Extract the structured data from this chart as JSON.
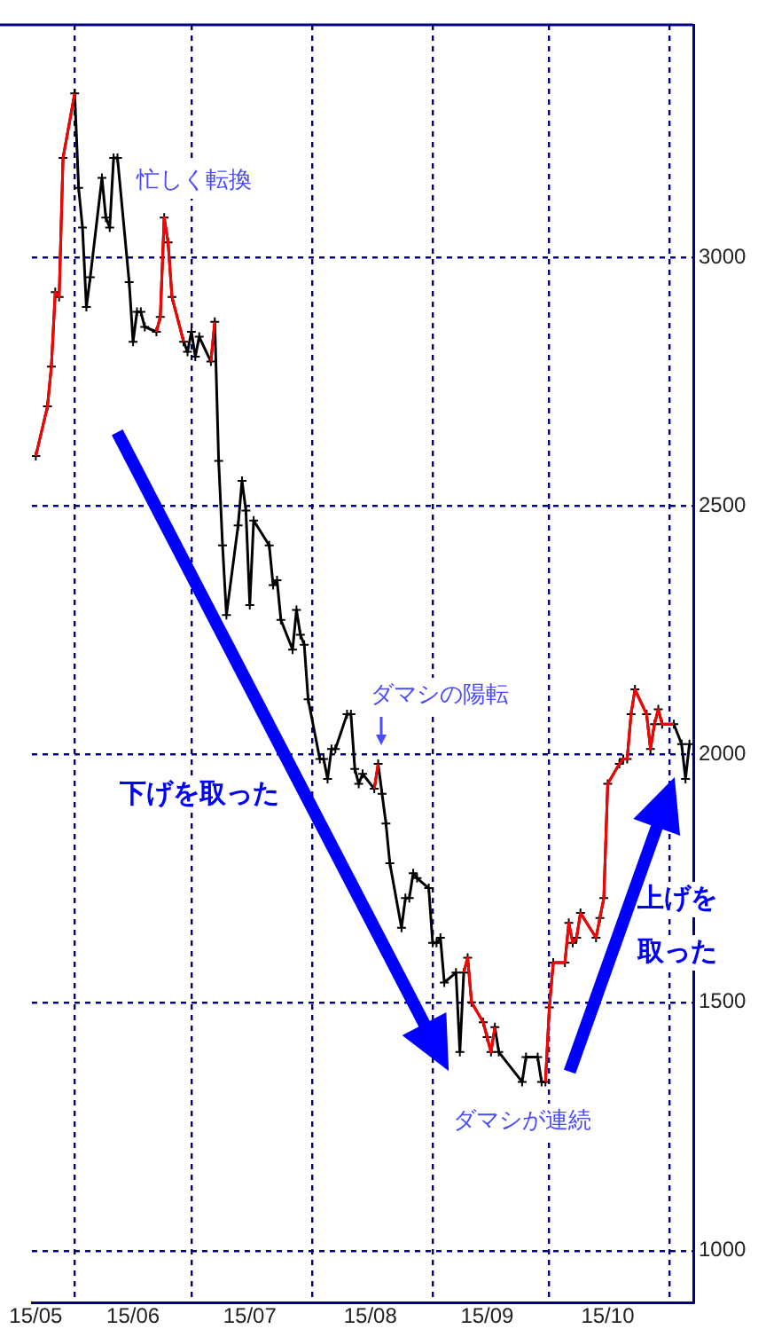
{
  "chart_data": {
    "type": "line",
    "x": [
      "--05-22",
      "--05-25",
      "--05-26",
      "--05-27",
      "--05-28",
      "--05-29",
      "--06-01",
      "--06-02",
      "--06-03",
      "--06-04",
      "--06-05",
      "--06-08",
      "--06-09",
      "--06-10",
      "--06-11",
      "--06-12",
      "--06-15",
      "--06-16",
      "--06-17",
      "--06-18",
      "--06-19",
      "--06-22",
      "--06-23",
      "--06-24",
      "--06-25",
      "--06-26",
      "--06-29",
      "--06-30",
      "--07-01",
      "--07-02",
      "--07-03",
      "--07-06",
      "--07-07",
      "--07-08",
      "--07-09",
      "--07-10",
      "--07-13",
      "--07-14",
      "--07-15",
      "--07-16",
      "--07-17",
      "--07-21",
      "--07-22",
      "--07-23",
      "--07-24",
      "--07-27",
      "--07-28",
      "--07-29",
      "--07-30",
      "--07-31",
      "--08-03",
      "--08-04",
      "--08-05",
      "--08-06",
      "--08-07",
      "--08-10",
      "--08-11",
      "--08-12",
      "--08-13",
      "--08-14",
      "--08-17",
      "--08-18",
      "--08-19",
      "--08-20",
      "--08-21",
      "--08-24",
      "--08-25",
      "--08-26",
      "--08-27",
      "--08-28",
      "--08-31",
      "--09-01",
      "--09-02",
      "--09-03",
      "--09-04",
      "--09-07",
      "--09-08",
      "--09-09",
      "--09-10",
      "--09-11",
      "--09-14",
      "--09-15",
      "--09-16",
      "--09-17",
      "--09-18",
      "--09-24",
      "--09-25",
      "--09-28",
      "--09-29",
      "--09-30",
      "--10-01",
      "--10-02",
      "--10-05",
      "--10-06",
      "--10-07",
      "--10-08",
      "--10-09",
      "--10-13",
      "--10-14",
      "--10-15",
      "--10-16",
      "--10-19",
      "--10-20",
      "--10-21",
      "--10-22",
      "--10-23",
      "--10-26",
      "--10-27",
      "--10-28",
      "--10-29",
      "--10-30",
      "--11-02",
      "--11-04",
      "--11-05",
      "--11-06"
    ],
    "series": [
      {
        "color": "#ff0000",
        "marker": "none",
        "values": [
          2600,
          2700,
          2780,
          2930,
          2920,
          3200,
          3330,
          null,
          null,
          null,
          null,
          null,
          null,
          null,
          null,
          null,
          null,
          null,
          null,
          null,
          null,
          2850,
          2880,
          3080,
          3030,
          2920,
          2830,
          null,
          null,
          null,
          null,
          2790,
          2870,
          null,
          null,
          null,
          null,
          null,
          null,
          null,
          null,
          null,
          null,
          null,
          null,
          null,
          null,
          null,
          null,
          null,
          null,
          null,
          null,
          null,
          null,
          null,
          null,
          null,
          null,
          null,
          1930,
          1980,
          null,
          null,
          null,
          null,
          null,
          null,
          null,
          null,
          null,
          null,
          null,
          null,
          null,
          null,
          null,
          1560,
          1590,
          1500,
          1460,
          1430,
          1400,
          1450,
          null,
          null,
          null,
          null,
          null,
          1340,
          1490,
          1580,
          1580,
          1660,
          1620,
          1630,
          1680,
          1630,
          1670,
          1710,
          1940,
          1980,
          1990,
          1990,
          2080,
          2130,
          2080,
          2010,
          2060,
          2090,
          2060,
          2060,
          null,
          null,
          null
        ]
      },
      {
        "color": "#000000",
        "values": [
          2600,
          2700,
          2780,
          2930,
          2920,
          3200,
          3330,
          3140,
          3060,
          2900,
          2960,
          3160,
          3080,
          3060,
          3200,
          3200,
          2950,
          2830,
          2890,
          2890,
          2860,
          2850,
          2880,
          3080,
          3030,
          2920,
          2830,
          2810,
          2850,
          2800,
          2840,
          2790,
          2870,
          2590,
          2420,
          2280,
          2460,
          2550,
          2490,
          2300,
          2470,
          2420,
          2340,
          2350,
          2270,
          2210,
          2290,
          2240,
          2220,
          2110,
          1990,
          1990,
          1950,
          2010,
          2010,
          2080,
          2080,
          1970,
          1940,
          1960,
          1930,
          1980,
          1920,
          1860,
          1780,
          1650,
          1710,
          1710,
          1760,
          1750,
          1730,
          1620,
          1620,
          1630,
          1540,
          1560,
          1400,
          1560,
          1590,
          1500,
          1460,
          1430,
          1400,
          1450,
          1400,
          1340,
          1390,
          1390,
          1340,
          1340,
          1490,
          1580,
          1580,
          1660,
          1620,
          1630,
          1680,
          1630,
          1670,
          1710,
          1940,
          1980,
          1990,
          1990,
          2080,
          2130,
          2080,
          2010,
          2060,
          2090,
          2060,
          2060,
          2020,
          1950,
          2020
        ]
      }
    ],
    "xlim": [
      "--05-21",
      "--11-07"
    ],
    "xticks": [
      {
        "value": "--05-22",
        "label": "15/05"
      },
      {
        "value": "--06-01",
        "label": null
      },
      {
        "value": "--06-16",
        "label": "15/06"
      },
      {
        "value": "--07-01",
        "label": null
      },
      {
        "value": "--07-16",
        "label": "15/07"
      },
      {
        "value": "--08-01",
        "label": null
      },
      {
        "value": "--08-16",
        "label": "15/08"
      },
      {
        "value": "--09-01",
        "label": null
      },
      {
        "value": "--09-15",
        "label": "15/09"
      },
      {
        "value": "--10-01",
        "label": null
      },
      {
        "value": "--10-16",
        "label": "15/10"
      },
      {
        "value": "--11-01",
        "label": null
      }
    ],
    "ylim": [
      896,
      3468
    ],
    "yticks": [
      1000,
      1500,
      2000,
      2500,
      3000
    ],
    "grid": true,
    "legend": false,
    "marker": "cross",
    "line_style": "solid",
    "annotations": [
      "忙しく転換",
      "ダマシの陽転",
      "下げを取った",
      "ダマシが連続",
      "上げを取った"
    ]
  }
}
